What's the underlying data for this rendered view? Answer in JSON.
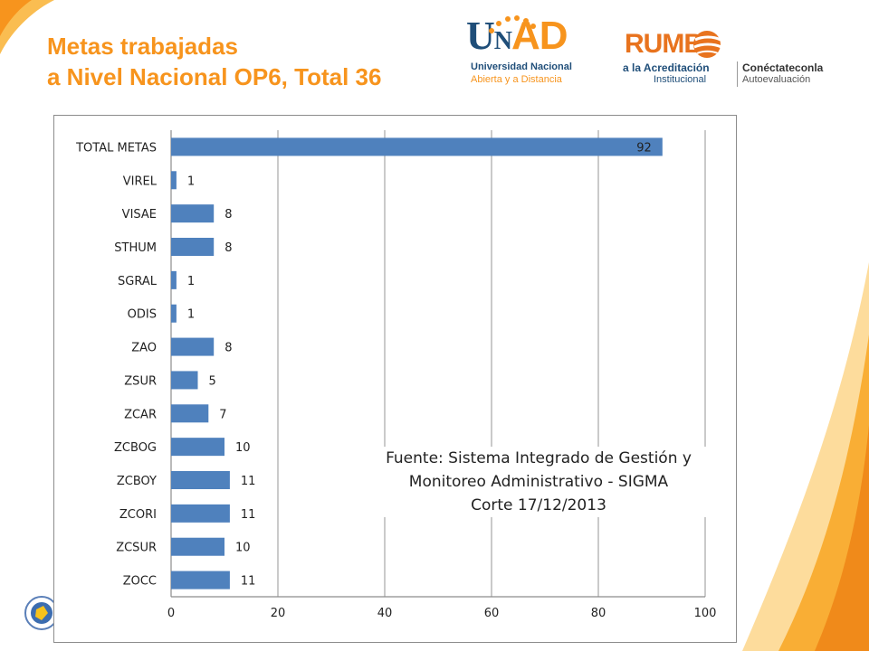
{
  "title": {
    "line1": "Metas trabajadas",
    "line2": "a Nivel Nacional OP6, Total 36"
  },
  "logos": {
    "unad": {
      "u": "U",
      "n": "N",
      "ad": "AD",
      "line1": "Universidad Nacional",
      "line2": "Abierta y a Distancia"
    },
    "rumbo": {
      "word": "RUMB",
      "line1": "a la Acreditación",
      "line2": "Institucional",
      "right1": "Conéctateconla",
      "right2": "Autoevaluación"
    }
  },
  "colors": {
    "title": "#f7941d",
    "bar": "#4f81bd",
    "grid": "#a6a6a6",
    "swoosh": "#f7a21b"
  },
  "source_note": {
    "line1": "Fuente: Sistema Integrado de Gestión y",
    "line2": "Monitoreo Administrativo - SIGMA",
    "line3": "Corte 17/12/2013"
  },
  "chart_data": {
    "type": "bar",
    "orientation": "horizontal",
    "categories": [
      "TOTAL METAS",
      "VIREL",
      "VISAE",
      "STHUM",
      "SGRAL",
      "ODIS",
      "ZAO",
      "ZSUR",
      "ZCAR",
      "ZCBOG",
      "ZCBOY",
      "ZCORI",
      "ZCSUR",
      "ZOCC"
    ],
    "values": [
      92,
      1,
      8,
      8,
      1,
      1,
      8,
      5,
      7,
      10,
      11,
      11,
      10,
      11
    ],
    "xlim": [
      0,
      100
    ],
    "xticks": [
      0,
      20,
      40,
      60,
      80,
      100
    ],
    "grid": true,
    "legend": "none"
  }
}
